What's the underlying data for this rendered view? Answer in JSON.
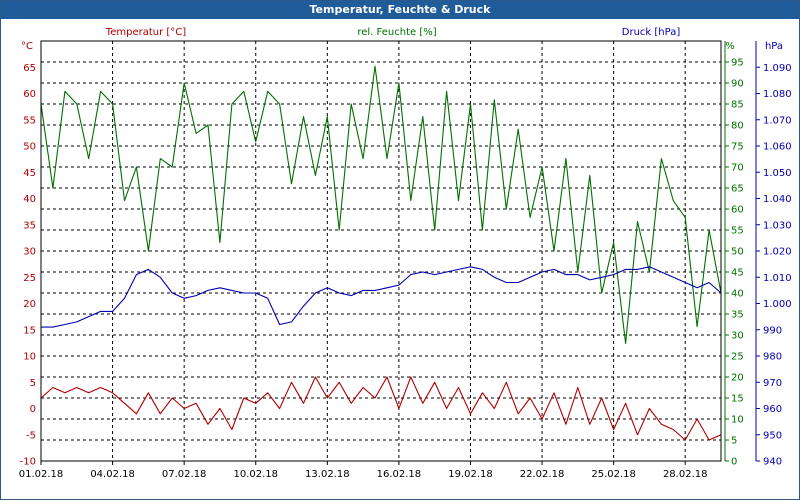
{
  "window": {
    "title": "Temperatur, Feuchte & Druck"
  },
  "legend": {
    "temperature": "Temperatur [°C]",
    "humidity": "rel. Feuchte [%]",
    "pressure": "Druck [hPa]"
  },
  "colors": {
    "temperature": "#b00000",
    "humidity": "#007000",
    "pressure": "#0000b0",
    "grid": "#000000",
    "titlebar": "#1f5c99"
  },
  "chart_data": {
    "type": "line",
    "title": "Temperatur, Feuchte & Druck",
    "xlabel": "",
    "x_ticks": [
      "01.02.18",
      "04.02.18",
      "07.02.18",
      "10.02.18",
      "13.02.18",
      "16.02.18",
      "19.02.18",
      "22.02.18",
      "25.02.18",
      "28.02.18"
    ],
    "xlim_days": [
      1,
      29.5
    ],
    "axes": {
      "temperature": {
        "unit": "°C",
        "range": [
          -10,
          70
        ],
        "ticks": [
          -10,
          -5,
          0,
          5,
          10,
          15,
          20,
          25,
          30,
          35,
          40,
          45,
          50,
          55,
          60,
          65
        ]
      },
      "humidity": {
        "unit": "%",
        "range": [
          0,
          100
        ],
        "ticks": [
          0,
          5,
          10,
          15,
          20,
          25,
          30,
          35,
          40,
          45,
          50,
          55,
          60,
          65,
          70,
          75,
          80,
          85,
          90,
          95
        ]
      },
      "pressure": {
        "unit": "hPa",
        "range": [
          940,
          1100
        ],
        "ticks": [
          "940",
          "950",
          "960",
          "970",
          "980",
          "990",
          "1.000",
          "1.010",
          "1.020",
          "1.030",
          "1.040",
          "1.050",
          "1.060",
          "1.070",
          "1.080",
          "1.090"
        ]
      }
    },
    "series": [
      {
        "name": "Temperatur [°C]",
        "axis": "temperature",
        "x": [
          1,
          1.5,
          2,
          2.5,
          3,
          3.5,
          4,
          4.5,
          5,
          5.5,
          6,
          6.5,
          7,
          7.5,
          8,
          8.5,
          9,
          9.5,
          10,
          10.5,
          11,
          11.5,
          12,
          12.5,
          13,
          13.5,
          14,
          14.5,
          15,
          15.5,
          16,
          16.5,
          17,
          17.5,
          18,
          18.5,
          19,
          19.5,
          20,
          20.5,
          21,
          21.5,
          22,
          22.5,
          23,
          23.5,
          24,
          24.5,
          25,
          25.5,
          26,
          26.5,
          27,
          27.5,
          28,
          28.5,
          29,
          29.5
        ],
        "values": [
          2,
          4,
          3,
          4,
          3,
          4,
          3,
          1,
          -1,
          3,
          -1,
          2,
          0,
          1,
          -3,
          0,
          -4,
          2,
          1,
          3,
          0,
          5,
          1,
          6,
          2,
          5,
          1,
          4,
          2,
          6,
          0,
          6,
          1,
          5,
          0,
          4,
          -1,
          3,
          0,
          5,
          -1,
          2,
          -2,
          3,
          -3,
          4,
          -3,
          2,
          -4,
          1,
          -5,
          0,
          -3,
          -4,
          -6,
          -2,
          -6,
          -5
        ]
      },
      {
        "name": "rel. Feuchte [%]",
        "axis": "humidity",
        "x": [
          1,
          1.5,
          2,
          2.5,
          3,
          3.5,
          4,
          4.5,
          5,
          5.5,
          6,
          6.5,
          7,
          7.5,
          8,
          8.5,
          9,
          9.5,
          10,
          10.5,
          11,
          11.5,
          12,
          12.5,
          13,
          13.5,
          14,
          14.5,
          15,
          15.5,
          16,
          16.5,
          17,
          17.5,
          18,
          18.5,
          19,
          19.5,
          20,
          20.5,
          21,
          21.5,
          22,
          22.5,
          23,
          23.5,
          24,
          24.5,
          25,
          25.5,
          26,
          26.5,
          27,
          27.5,
          28,
          28.5,
          29,
          29.5
        ],
        "values": [
          85,
          65,
          88,
          85,
          72,
          88,
          85,
          62,
          70,
          50,
          72,
          70,
          90,
          78,
          80,
          52,
          85,
          88,
          76,
          88,
          85,
          66,
          82,
          68,
          82,
          55,
          85,
          72,
          94,
          72,
          90,
          62,
          82,
          55,
          88,
          62,
          85,
          55,
          86,
          60,
          79,
          58,
          70,
          50,
          72,
          45,
          68,
          40,
          52,
          28,
          57,
          45,
          72,
          62,
          58,
          32,
          55,
          40
        ]
      },
      {
        "name": "Druck [hPa]",
        "axis": "pressure",
        "x": [
          1,
          1.5,
          2,
          2.5,
          3,
          3.5,
          4,
          4.5,
          5,
          5.5,
          6,
          6.5,
          7,
          7.5,
          8,
          8.5,
          9,
          9.5,
          10,
          10.5,
          11,
          11.5,
          12,
          12.5,
          13,
          13.5,
          14,
          14.5,
          15,
          15.5,
          16,
          16.5,
          17,
          17.5,
          18,
          18.5,
          19,
          19.5,
          20,
          20.5,
          21,
          21.5,
          22,
          22.5,
          23,
          23.5,
          24,
          24.5,
          25,
          25.5,
          26,
          26.5,
          27,
          27.5,
          28,
          28.5,
          29,
          29.5
        ],
        "values": [
          991,
          991,
          992,
          993,
          995,
          997,
          997,
          1002,
          1011,
          1013,
          1010,
          1004,
          1002,
          1003,
          1005,
          1006,
          1005,
          1004,
          1004,
          1002,
          992,
          993,
          999,
          1004,
          1006,
          1004,
          1003,
          1005,
          1005,
          1006,
          1007,
          1011,
          1012,
          1011,
          1012,
          1013,
          1014,
          1013,
          1010,
          1008,
          1008,
          1010,
          1012,
          1013,
          1011,
          1011,
          1009,
          1010,
          1011,
          1013,
          1013,
          1014,
          1012,
          1010,
          1008,
          1006,
          1008,
          1004
        ]
      }
    ]
  }
}
